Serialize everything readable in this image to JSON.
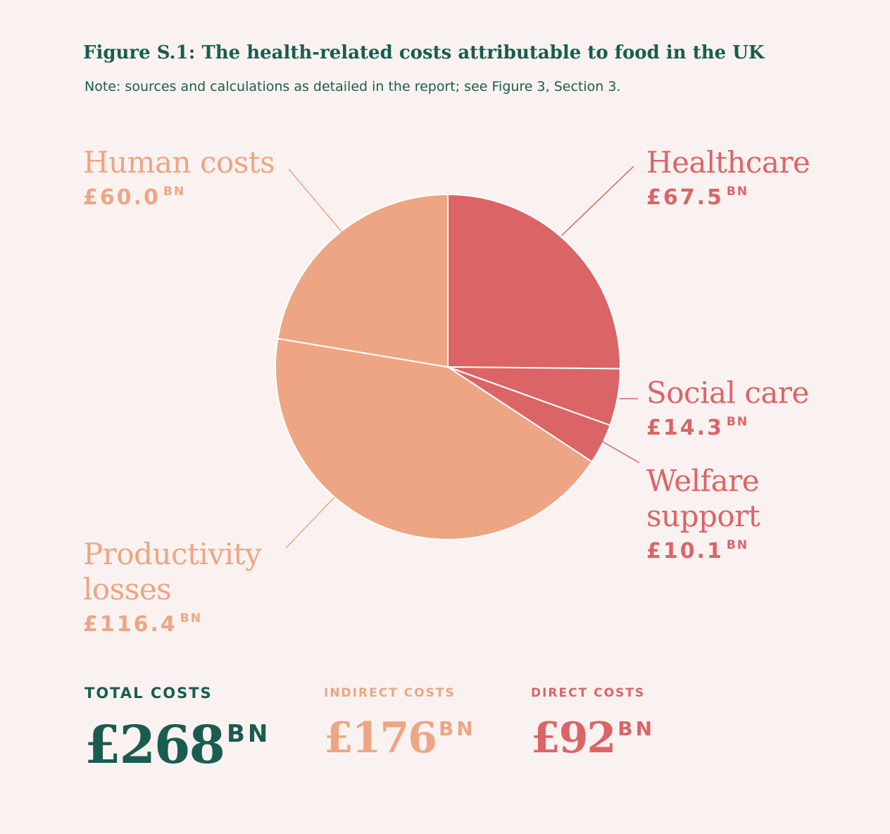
{
  "figure": {
    "title": "Figure S.1: The health-related costs attributable to food in the UK",
    "note": "Note: sources and calculations as detailed in the report; see Figure 3, Section 3."
  },
  "colors": {
    "direct": "#db6467",
    "indirect": "#eda584",
    "total": "#1a5c4f",
    "background": "#f9f2f0"
  },
  "chart_data": {
    "type": "pie",
    "unit": "BN",
    "slices": [
      {
        "name": "Healthcare",
        "value": 67.5,
        "value_label": "£67.5",
        "unit": "BN",
        "group": "direct"
      },
      {
        "name": "Social care",
        "value": 14.3,
        "value_label": "£14.3",
        "unit": "BN",
        "group": "direct"
      },
      {
        "name": "Welfare support",
        "value": 10.1,
        "value_label": "£10.1",
        "unit": "BN",
        "group": "direct"
      },
      {
        "name": "Productivity losses",
        "value": 116.4,
        "value_label": "£116.4",
        "unit": "BN",
        "group": "indirect"
      },
      {
        "name": "Human costs",
        "value": 60.0,
        "value_label": "£60.0",
        "unit": "BN",
        "group": "indirect"
      }
    ],
    "labels": {
      "healthcare": {
        "name": "Healthcare",
        "value": "£67.5",
        "unit": "BN"
      },
      "social_care": {
        "name": "Social care",
        "value": "£14.3",
        "unit": "BN"
      },
      "welfare": {
        "line1": "Welfare",
        "line2": "support",
        "value": "£10.1",
        "unit": "BN"
      },
      "productivity": {
        "line1": "Productivity",
        "line2": "losses",
        "value": "£116.4",
        "unit": "BN"
      },
      "human": {
        "name": "Human costs",
        "value": "£60.0",
        "unit": "BN"
      }
    }
  },
  "totals": {
    "total": {
      "caption": "TOTAL COSTS",
      "value": "£268",
      "unit": "BN"
    },
    "indirect": {
      "caption": "INDIRECT COSTS",
      "value": "£176",
      "unit": "BN"
    },
    "direct": {
      "caption": "DIRECT COSTS",
      "value": "£92",
      "unit": "BN"
    }
  }
}
